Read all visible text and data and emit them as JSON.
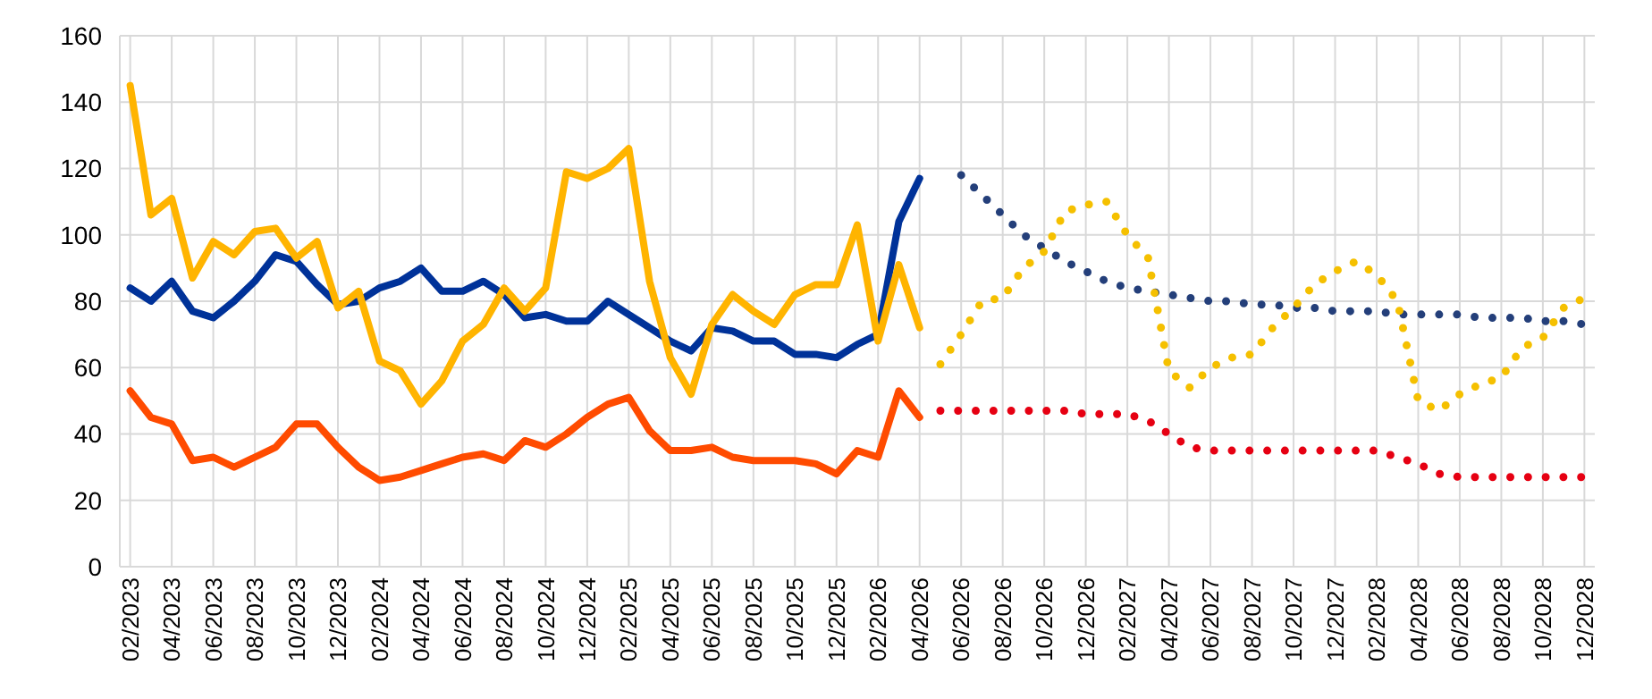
{
  "chart_data": {
    "type": "line",
    "categories": [
      "02/2023",
      null,
      "04/2023",
      null,
      "06/2023",
      null,
      "08/2023",
      null,
      "10/2023",
      null,
      "12/2023",
      null,
      "02/2024",
      null,
      "04/2024",
      null,
      "06/2024",
      null,
      "08/2024",
      null,
      "10/2024",
      null,
      "12/2024",
      null,
      "02/2025",
      null,
      "04/2025",
      null,
      "06/2025",
      null,
      "08/2025",
      null,
      "10/2025",
      null,
      "12/2025",
      null,
      "02/2026",
      null,
      "04/2026",
      null,
      "06/2026",
      null,
      "08/2026",
      null,
      "10/2026",
      null,
      "12/2026",
      null,
      "02/2027",
      null,
      "04/2027",
      null,
      "06/2027",
      null,
      "08/2027",
      null,
      "10/2027",
      null,
      "12/2027",
      null,
      "02/2028",
      null,
      "04/2028",
      null,
      "06/2028",
      null,
      "08/2028",
      null,
      "10/2028",
      null,
      "12/2028"
    ],
    "ylim": [
      0,
      160
    ],
    "yticks": [
      0,
      20,
      40,
      60,
      80,
      100,
      120,
      140,
      160
    ],
    "grid": true,
    "marker": "none",
    "series": [
      {
        "color": "#003299",
        "line_style": "solid",
        "values": [
          84,
          80,
          86,
          77,
          75,
          80,
          86,
          94,
          92,
          85,
          79,
          80,
          84,
          86,
          90,
          83,
          83,
          86,
          82,
          75,
          76,
          74,
          74,
          80,
          76,
          72,
          68,
          65,
          72,
          71,
          68,
          68,
          64,
          64,
          63,
          67,
          70,
          104,
          117,
          null,
          null,
          null,
          null,
          null,
          null,
          null,
          null,
          null,
          null,
          null,
          null,
          null,
          null,
          null,
          null,
          null,
          null,
          null,
          null,
          null,
          null,
          null,
          null,
          null,
          null,
          null,
          null,
          null,
          null,
          null,
          null
        ]
      },
      {
        "color": "#ffb400",
        "line_style": "solid",
        "values": [
          145,
          106,
          111,
          87,
          98,
          94,
          101,
          102,
          93,
          98,
          78,
          83,
          62,
          59,
          49,
          56,
          68,
          73,
          84,
          77,
          84,
          119,
          117,
          120,
          126,
          86,
          63,
          52,
          73,
          82,
          77,
          73,
          82,
          85,
          85,
          103,
          68,
          91,
          72,
          null,
          null,
          null,
          null,
          null,
          null,
          null,
          null,
          null,
          null,
          null,
          null,
          null,
          null,
          null,
          null,
          null,
          null,
          null,
          null,
          null,
          null,
          null,
          null,
          null,
          null,
          null,
          null,
          null,
          null,
          null,
          null
        ]
      },
      {
        "color": "#ff4b00",
        "line_style": "solid",
        "values": [
          53,
          45,
          43,
          32,
          33,
          30,
          33,
          36,
          43,
          43,
          36,
          30,
          26,
          27,
          29,
          31,
          33,
          34,
          32,
          38,
          36,
          40,
          45,
          49,
          51,
          41,
          35,
          35,
          36,
          33,
          32,
          32,
          32,
          31,
          28,
          35,
          33,
          53,
          45,
          null,
          null,
          null,
          null,
          null,
          null,
          null,
          null,
          null,
          null,
          null,
          null,
          null,
          null,
          null,
          null,
          null,
          null,
          null,
          null,
          null,
          null,
          null,
          null,
          null,
          null,
          null,
          null,
          null,
          null,
          null,
          null
        ]
      },
      {
        "color": "#243f7a",
        "line_style": "dotted",
        "values": [
          null,
          null,
          null,
          null,
          null,
          null,
          null,
          null,
          null,
          null,
          null,
          null,
          null,
          null,
          null,
          null,
          null,
          null,
          null,
          null,
          null,
          null,
          null,
          null,
          null,
          null,
          null,
          null,
          null,
          null,
          null,
          null,
          null,
          null,
          null,
          null,
          null,
          null,
          null,
          null,
          118,
          112,
          106,
          100,
          96,
          92,
          89,
          86,
          84,
          83,
          82,
          81,
          80,
          80,
          79,
          79,
          78,
          78,
          77,
          77,
          77,
          76,
          76,
          76,
          76,
          75,
          75,
          75,
          74,
          74,
          73
        ]
      },
      {
        "color": "#f5c000",
        "line_style": "dotted",
        "values": [
          null,
          null,
          null,
          null,
          null,
          null,
          null,
          null,
          null,
          null,
          null,
          null,
          null,
          null,
          null,
          null,
          null,
          null,
          null,
          null,
          null,
          null,
          null,
          null,
          null,
          null,
          null,
          null,
          null,
          null,
          null,
          null,
          null,
          null,
          null,
          null,
          null,
          null,
          null,
          61,
          70,
          80,
          81,
          90,
          95,
          107,
          109,
          110,
          100,
          93,
          59,
          54,
          60,
          63,
          64,
          72,
          78,
          85,
          89,
          92,
          88,
          80,
          50,
          47,
          52,
          55,
          57,
          66,
          69,
          78,
          81
        ]
      },
      {
        "color": "#e60012",
        "line_style": "dotted",
        "values": [
          null,
          null,
          null,
          null,
          null,
          null,
          null,
          null,
          null,
          null,
          null,
          null,
          null,
          null,
          null,
          null,
          null,
          null,
          null,
          null,
          null,
          null,
          null,
          null,
          null,
          null,
          null,
          null,
          null,
          null,
          null,
          null,
          null,
          null,
          null,
          null,
          null,
          null,
          null,
          47,
          47,
          47,
          47,
          47,
          47,
          47,
          46,
          46,
          46,
          44,
          40,
          36,
          35,
          35,
          35,
          35,
          35,
          35,
          35,
          35,
          35,
          33,
          31,
          28,
          27,
          27,
          27,
          27,
          27,
          27,
          27
        ]
      }
    ]
  }
}
